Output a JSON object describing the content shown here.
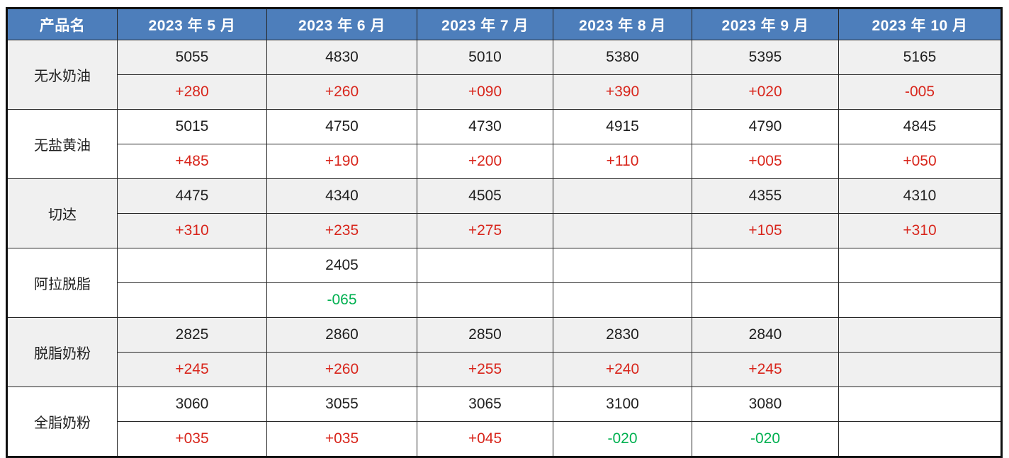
{
  "chart_data": {
    "type": "table",
    "columns": [
      "产品名",
      "2023 年 5 月",
      "2023 年 6 月",
      "2023 年 7 月",
      "2023 年 8 月",
      "2023 年 9 月",
      "2023 年 10 月"
    ],
    "row_structure": "each product has two sub-rows: price, then month-over-month change",
    "products": [
      {
        "name": "无水奶油",
        "prices": [
          "5055",
          "4830",
          "5010",
          "5380",
          "5395",
          "5165"
        ],
        "changes": [
          "+280",
          "+260",
          "+090",
          "+390",
          "+020",
          "-005"
        ],
        "change_colors": [
          "red",
          "red",
          "red",
          "red",
          "red",
          "red"
        ]
      },
      {
        "name": "无盐黄油",
        "prices": [
          "5015",
          "4750",
          "4730",
          "4915",
          "4790",
          "4845"
        ],
        "changes": [
          "+485",
          "+190",
          "+200",
          "+110",
          "+005",
          "+050"
        ],
        "change_colors": [
          "red",
          "red",
          "red",
          "red",
          "red",
          "red"
        ]
      },
      {
        "name": "切达",
        "prices": [
          "4475",
          "4340",
          "4505",
          "",
          "4355",
          "4310"
        ],
        "changes": [
          "+310",
          "+235",
          "+275",
          "",
          "+105",
          "+310"
        ],
        "change_colors": [
          "red",
          "red",
          "red",
          null,
          "red",
          "red"
        ]
      },
      {
        "name": "阿拉脱脂",
        "prices": [
          "",
          "2405",
          "",
          "",
          "",
          ""
        ],
        "changes": [
          "",
          "-065",
          "",
          "",
          "",
          ""
        ],
        "change_colors": [
          null,
          "green",
          null,
          null,
          null,
          null
        ]
      },
      {
        "name": "脱脂奶粉",
        "prices": [
          "2825",
          "2860",
          "2850",
          "2830",
          "2840",
          ""
        ],
        "changes": [
          "+245",
          "+260",
          "+255",
          "+240",
          "+245",
          ""
        ],
        "change_colors": [
          "red",
          "red",
          "red",
          "red",
          "red",
          null
        ]
      },
      {
        "name": "全脂奶粉",
        "prices": [
          "3060",
          "3055",
          "3065",
          "3100",
          "3080",
          ""
        ],
        "changes": [
          "+035",
          "+035",
          "+045",
          "-020",
          "-020",
          ""
        ],
        "change_colors": [
          "red",
          "red",
          "red",
          "green",
          "green",
          null
        ]
      }
    ],
    "colors": {
      "header_bg": "#4D7EBB",
      "header_text": "#FFFFFF",
      "band_gray": "#F0F0F0",
      "band_white": "#FFFFFF",
      "change_red": "#D8261C",
      "change_green": "#00B050",
      "border": "#262626",
      "value_text": "#1F1F1F"
    }
  }
}
